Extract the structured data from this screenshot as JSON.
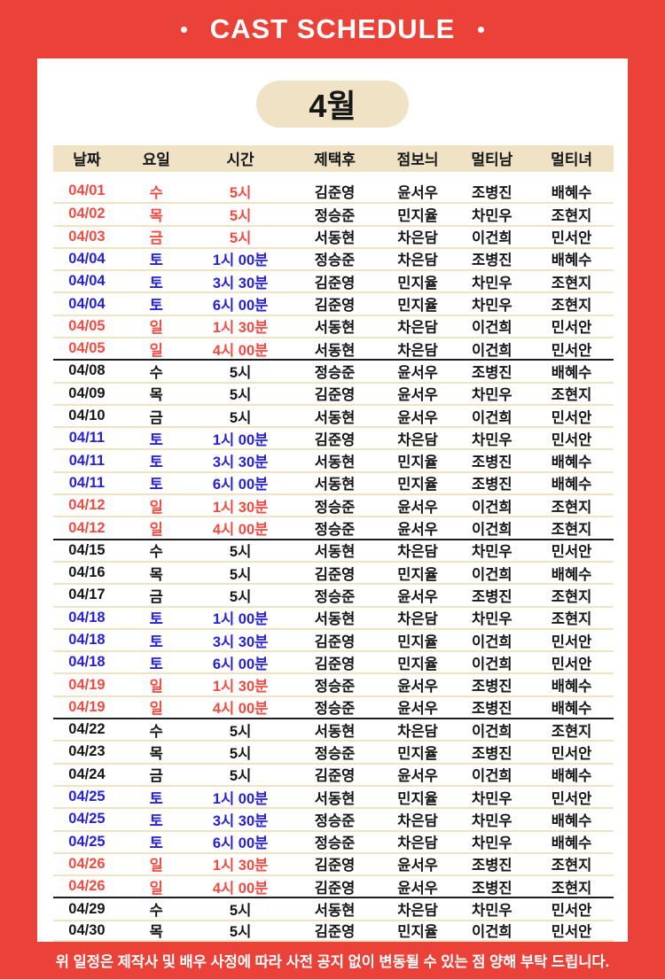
{
  "header": {
    "title": "CAST SCHEDULE",
    "dot": "·"
  },
  "month_badge": "4월",
  "table": {
    "columns": [
      "날짜",
      "요일",
      "시간",
      "제택후",
      "점보늬",
      "멀티남",
      "멀티녀"
    ],
    "rows": [
      {
        "date": "04/01",
        "day": "수",
        "time": "5시",
        "cast": [
          "김준영",
          "윤서우",
          "조병진",
          "배혜수"
        ],
        "tone": "red",
        "week_break": false
      },
      {
        "date": "04/02",
        "day": "목",
        "time": "5시",
        "cast": [
          "정승준",
          "민지율",
          "차민우",
          "조현지"
        ],
        "tone": "red",
        "week_break": false
      },
      {
        "date": "04/03",
        "day": "금",
        "time": "5시",
        "cast": [
          "서동현",
          "차은담",
          "이건희",
          "민서안"
        ],
        "tone": "red",
        "week_break": false
      },
      {
        "date": "04/04",
        "day": "토",
        "time": "1시 00분",
        "cast": [
          "정승준",
          "차은담",
          "조병진",
          "배혜수"
        ],
        "tone": "blue",
        "week_break": false
      },
      {
        "date": "04/04",
        "day": "토",
        "time": "3시 30분",
        "cast": [
          "김준영",
          "민지율",
          "차민우",
          "조현지"
        ],
        "tone": "blue",
        "week_break": false
      },
      {
        "date": "04/04",
        "day": "토",
        "time": "6시 00분",
        "cast": [
          "김준영",
          "민지율",
          "차민우",
          "조현지"
        ],
        "tone": "blue",
        "week_break": false
      },
      {
        "date": "04/05",
        "day": "일",
        "time": "1시 30분",
        "cast": [
          "서동현",
          "차은담",
          "이건희",
          "민서안"
        ],
        "tone": "red",
        "week_break": false
      },
      {
        "date": "04/05",
        "day": "일",
        "time": "4시 00분",
        "cast": [
          "서동현",
          "차은담",
          "이건희",
          "민서안"
        ],
        "tone": "red",
        "week_break": false
      },
      {
        "date": "04/08",
        "day": "수",
        "time": "5시",
        "cast": [
          "정승준",
          "윤서우",
          "조병진",
          "배혜수"
        ],
        "tone": "black",
        "week_break": true
      },
      {
        "date": "04/09",
        "day": "목",
        "time": "5시",
        "cast": [
          "김준영",
          "윤서우",
          "차민우",
          "조현지"
        ],
        "tone": "black",
        "week_break": false
      },
      {
        "date": "04/10",
        "day": "금",
        "time": "5시",
        "cast": [
          "서동현",
          "윤서우",
          "이건희",
          "민서안"
        ],
        "tone": "black",
        "week_break": false
      },
      {
        "date": "04/11",
        "day": "토",
        "time": "1시 00분",
        "cast": [
          "김준영",
          "차은담",
          "차민우",
          "민서안"
        ],
        "tone": "blue",
        "week_break": false
      },
      {
        "date": "04/11",
        "day": "토",
        "time": "3시 30분",
        "cast": [
          "서동현",
          "민지율",
          "조병진",
          "배혜수"
        ],
        "tone": "blue",
        "week_break": false
      },
      {
        "date": "04/11",
        "day": "토",
        "time": "6시 00분",
        "cast": [
          "서동현",
          "민지율",
          "조병진",
          "배혜수"
        ],
        "tone": "blue",
        "week_break": false
      },
      {
        "date": "04/12",
        "day": "일",
        "time": "1시 30분",
        "cast": [
          "정승준",
          "윤서우",
          "이건희",
          "조현지"
        ],
        "tone": "red",
        "week_break": false
      },
      {
        "date": "04/12",
        "day": "일",
        "time": "4시 00분",
        "cast": [
          "정승준",
          "윤서우",
          "이건희",
          "조현지"
        ],
        "tone": "red",
        "week_break": false
      },
      {
        "date": "04/15",
        "day": "수",
        "time": "5시",
        "cast": [
          "서동현",
          "차은담",
          "차민우",
          "민서안"
        ],
        "tone": "black",
        "week_break": true
      },
      {
        "date": "04/16",
        "day": "목",
        "time": "5시",
        "cast": [
          "김준영",
          "민지율",
          "이건희",
          "배혜수"
        ],
        "tone": "black",
        "week_break": false
      },
      {
        "date": "04/17",
        "day": "금",
        "time": "5시",
        "cast": [
          "정승준",
          "윤서우",
          "조병진",
          "조현지"
        ],
        "tone": "black",
        "week_break": false
      },
      {
        "date": "04/18",
        "day": "토",
        "time": "1시 00분",
        "cast": [
          "서동현",
          "차은담",
          "차민우",
          "조현지"
        ],
        "tone": "blue",
        "week_break": false
      },
      {
        "date": "04/18",
        "day": "토",
        "time": "3시 30분",
        "cast": [
          "김준영",
          "민지율",
          "이건희",
          "민서안"
        ],
        "tone": "blue",
        "week_break": false
      },
      {
        "date": "04/18",
        "day": "토",
        "time": "6시 00분",
        "cast": [
          "김준영",
          "민지율",
          "이건희",
          "민서안"
        ],
        "tone": "blue",
        "week_break": false
      },
      {
        "date": "04/19",
        "day": "일",
        "time": "1시 30분",
        "cast": [
          "정승준",
          "윤서우",
          "조병진",
          "배혜수"
        ],
        "tone": "red",
        "week_break": false
      },
      {
        "date": "04/19",
        "day": "일",
        "time": "4시 00분",
        "cast": [
          "정승준",
          "윤서우",
          "조병진",
          "배혜수"
        ],
        "tone": "red",
        "week_break": false
      },
      {
        "date": "04/22",
        "day": "수",
        "time": "5시",
        "cast": [
          "서동현",
          "차은담",
          "이건희",
          "조현지"
        ],
        "tone": "black",
        "week_break": true
      },
      {
        "date": "04/23",
        "day": "목",
        "time": "5시",
        "cast": [
          "정승준",
          "민지율",
          "조병진",
          "민서안"
        ],
        "tone": "black",
        "week_break": false
      },
      {
        "date": "04/24",
        "day": "금",
        "time": "5시",
        "cast": [
          "김준영",
          "윤서우",
          "이건희",
          "배혜수"
        ],
        "tone": "black",
        "week_break": false
      },
      {
        "date": "04/25",
        "day": "토",
        "time": "1시 00분",
        "cast": [
          "서동현",
          "민지율",
          "차민우",
          "민서안"
        ],
        "tone": "blue",
        "week_break": false
      },
      {
        "date": "04/25",
        "day": "토",
        "time": "3시 30분",
        "cast": [
          "정승준",
          "차은담",
          "차민우",
          "배혜수"
        ],
        "tone": "blue",
        "week_break": false
      },
      {
        "date": "04/25",
        "day": "토",
        "time": "6시 00분",
        "cast": [
          "정승준",
          "차은담",
          "차민우",
          "배혜수"
        ],
        "tone": "blue",
        "week_break": false
      },
      {
        "date": "04/26",
        "day": "일",
        "time": "1시 30분",
        "cast": [
          "김준영",
          "윤서우",
          "조병진",
          "조현지"
        ],
        "tone": "red",
        "week_break": false
      },
      {
        "date": "04/26",
        "day": "일",
        "time": "4시 00분",
        "cast": [
          "김준영",
          "윤서우",
          "조병진",
          "조현지"
        ],
        "tone": "red",
        "week_break": false
      },
      {
        "date": "04/29",
        "day": "수",
        "time": "5시",
        "cast": [
          "서동현",
          "차은담",
          "차민우",
          "민서안"
        ],
        "tone": "black",
        "week_break": true
      },
      {
        "date": "04/30",
        "day": "목",
        "time": "5시",
        "cast": [
          "김준영",
          "민지율",
          "이건희",
          "민서안"
        ],
        "tone": "black",
        "week_break": false
      }
    ]
  },
  "footer": {
    "notice": "위 일정은 제작사 및 배우 사정에 따라 사전 공지 없이 변동될 수 있는 점 양해 부탁 드립니다."
  },
  "colors": {
    "background_red": "#EA4239",
    "beige": "#EFE2C5",
    "date_red": "#F04B41",
    "date_blue": "#2621D6",
    "text_black": "#151515",
    "white": "#FFFFFF"
  }
}
